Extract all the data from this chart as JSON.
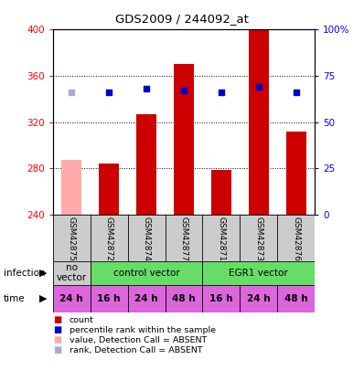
{
  "title": "GDS2009 / 244092_at",
  "samples": [
    "GSM42875",
    "GSM42872",
    "GSM42874",
    "GSM42877",
    "GSM42871",
    "GSM42873",
    "GSM42876"
  ],
  "bar_values": [
    287,
    284,
    327,
    370,
    279,
    400,
    312
  ],
  "bar_absent": [
    true,
    false,
    false,
    false,
    false,
    false,
    false
  ],
  "rank_values": [
    66,
    66,
    68,
    67,
    66,
    69,
    66
  ],
  "rank_absent": [
    true,
    false,
    false,
    false,
    false,
    false,
    false
  ],
  "ylim_left": [
    240,
    400
  ],
  "ylim_right": [
    0,
    100
  ],
  "yticks_left": [
    240,
    280,
    320,
    360,
    400
  ],
  "yticks_right": [
    0,
    25,
    50,
    75,
    100
  ],
  "infection_groups": [
    {
      "label": "no\nvector",
      "span": [
        0,
        1
      ],
      "color": "#cccccc"
    },
    {
      "label": "control vector",
      "span": [
        1,
        4
      ],
      "color": "#66dd66"
    },
    {
      "label": "EGR1 vector",
      "span": [
        4,
        7
      ],
      "color": "#66dd66"
    }
  ],
  "time_labels": [
    "24 h",
    "16 h",
    "24 h",
    "48 h",
    "16 h",
    "24 h",
    "48 h"
  ],
  "time_color": "#dd66dd",
  "bar_color_present": "#cc0000",
  "bar_color_absent": "#ffaaaa",
  "rank_color_present": "#0000cc",
  "rank_color_absent": "#aaaacc",
  "legend_items": [
    {
      "color": "#cc0000",
      "label": "count"
    },
    {
      "color": "#0000cc",
      "label": "percentile rank within the sample"
    },
    {
      "color": "#ffaaaa",
      "label": "value, Detection Call = ABSENT"
    },
    {
      "color": "#aaaacc",
      "label": "rank, Detection Call = ABSENT"
    }
  ]
}
